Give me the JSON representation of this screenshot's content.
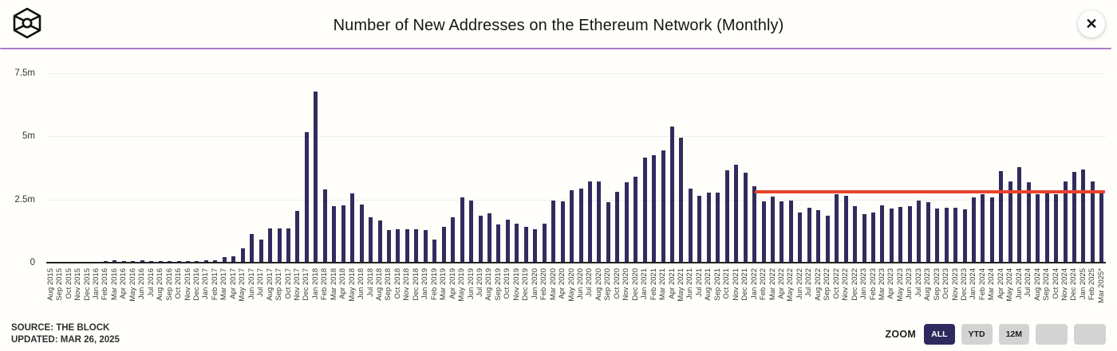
{
  "header": {
    "title": "Number of New Addresses on the Ethereum Network (Monthly)",
    "close_glyph": "✕"
  },
  "footer": {
    "source": "SOURCE: THE BLOCK",
    "updated": "UPDATED: MAR 26, 2025"
  },
  "zoom_controls": {
    "label": "ZOOM",
    "buttons": [
      {
        "label": "ALL",
        "active": true
      },
      {
        "label": "YTD",
        "active": false
      },
      {
        "label": "12M",
        "active": false
      },
      {
        "label": "",
        "active": false
      },
      {
        "label": "",
        "active": false
      }
    ]
  },
  "colors": {
    "bar": "#312c5e",
    "annotation_line": "#e8432c",
    "divider": "#a87cc9",
    "button_active_bg": "#2e2a5e"
  },
  "chart_data": {
    "type": "bar",
    "title": "Number of New Addresses on the Ethereum Network (Monthly)",
    "unit": "millions of addresses",
    "ylabel": "",
    "xlabel": "",
    "y_max": 7.5,
    "y_ticks": [
      {
        "label": "7.5m",
        "value": 7.5
      },
      {
        "label": "5m",
        "value": 5
      },
      {
        "label": "2.5m",
        "value": 2.5
      },
      {
        "label": "0",
        "value": 0
      }
    ],
    "grid": true,
    "categories": [
      "Aug 2015",
      "Sep 2015",
      "Oct 2015",
      "Nov 2015",
      "Dec 2015",
      "Jan 2016",
      "Feb 2016",
      "Mar 2016",
      "Apr 2016",
      "May 2016",
      "Jun 2016",
      "Jul 2016",
      "Aug 2016",
      "Sep 2016",
      "Oct 2016",
      "Nov 2016",
      "Dec 2016",
      "Jan 2017",
      "Feb 2017",
      "Mar 2017",
      "Apr 2017",
      "May 2017",
      "Jun 2017",
      "Jul 2017",
      "Aug 2017",
      "Sep 2017",
      "Oct 2017",
      "Nov 2017",
      "Dec 2017",
      "Jan 2018",
      "Feb 2018",
      "Mar 2018",
      "Apr 2018",
      "May 2018",
      "Jun 2018",
      "Jul 2018",
      "Aug 2018",
      "Sep 2018",
      "Oct 2018",
      "Nov 2018",
      "Dec 2018",
      "Jan 2019",
      "Feb 2019",
      "Mar 2019",
      "Apr 2019",
      "May 2019",
      "Jun 2019",
      "Jul 2019",
      "Aug 2019",
      "Sep 2019",
      "Oct 2019",
      "Nov 2019",
      "Dec 2019",
      "Jan 2020",
      "Feb 2020",
      "Mar 2020",
      "Apr 2020",
      "May 2020",
      "Jun 2020",
      "Jul 2020",
      "Aug 2020",
      "Sep 2020",
      "Oct 2020",
      "Nov 2020",
      "Dec 2020",
      "Jan 2021",
      "Feb 2021",
      "Mar 2021",
      "Apr 2021",
      "May 2021",
      "Jun 2021",
      "Jul 2021",
      "Aug 2021",
      "Sep 2021",
      "Oct 2021",
      "Nov 2021",
      "Dec 2021",
      "Jan 2022",
      "Feb 2022",
      "Mar 2022",
      "Apr 2022",
      "May 2022",
      "Jun 2022",
      "Jul 2022",
      "Aug 2022",
      "Sep 2022",
      "Oct 2022",
      "Nov 2022",
      "Dec 2022",
      "Jan 2023",
      "Feb 2023",
      "Mar 2023",
      "Apr 2023",
      "May 2023",
      "Jun 2023",
      "Jul 2023",
      "Aug 2023",
      "Sep 2023",
      "Oct 2023",
      "Nov 2023",
      "Dec 2023",
      "Jan 2024",
      "Feb 2024",
      "Mar 2024",
      "Apr 2024",
      "May 2024",
      "Jun 2024",
      "Jul 2024",
      "Aug 2024",
      "Sep 2024",
      "Oct 2024",
      "Nov 2024",
      "Dec 2024",
      "Jan 2025",
      "Feb 2025",
      "Mar 2025*"
    ],
    "values": [
      0.01,
      0.01,
      0.01,
      0.01,
      0.02,
      0.02,
      0.05,
      0.08,
      0.06,
      0.07,
      0.08,
      0.07,
      0.07,
      0.07,
      0.07,
      0.07,
      0.07,
      0.08,
      0.08,
      0.21,
      0.26,
      0.58,
      1.15,
      0.91,
      1.37,
      1.34,
      1.34,
      2.05,
      5.17,
      6.78,
      2.89,
      2.23,
      2.26,
      2.75,
      2.3,
      1.81,
      1.68,
      1.28,
      1.33,
      1.31,
      1.33,
      1.28,
      0.91,
      1.42,
      1.79,
      2.57,
      2.45,
      1.86,
      1.94,
      1.52,
      1.71,
      1.55,
      1.42,
      1.31,
      1.53,
      2.45,
      2.42,
      2.86,
      2.93,
      3.2,
      3.2,
      2.4,
      2.8,
      3.17,
      3.39,
      4.15,
      4.26,
      4.45,
      5.39,
      4.94,
      2.94,
      2.65,
      2.78,
      2.76,
      3.66,
      3.87,
      3.55,
      3.02,
      2.42,
      2.63,
      2.42,
      2.47,
      2.0,
      2.19,
      2.07,
      1.87,
      2.72,
      2.65,
      2.24,
      1.92,
      1.98,
      2.28,
      2.14,
      2.2,
      2.25,
      2.46,
      2.39,
      2.14,
      2.18,
      2.18,
      2.1,
      2.6,
      2.7,
      2.6,
      3.62,
      3.2,
      3.77,
      3.17,
      2.7,
      2.73,
      2.7,
      3.23,
      3.58,
      3.7,
      3.23,
      2.75
    ],
    "annotation_line": {
      "value": 2.79,
      "start_category": "Jan 2022",
      "end_category": "Mar 2025*",
      "color": "#e8432c"
    },
    "legend": false
  }
}
